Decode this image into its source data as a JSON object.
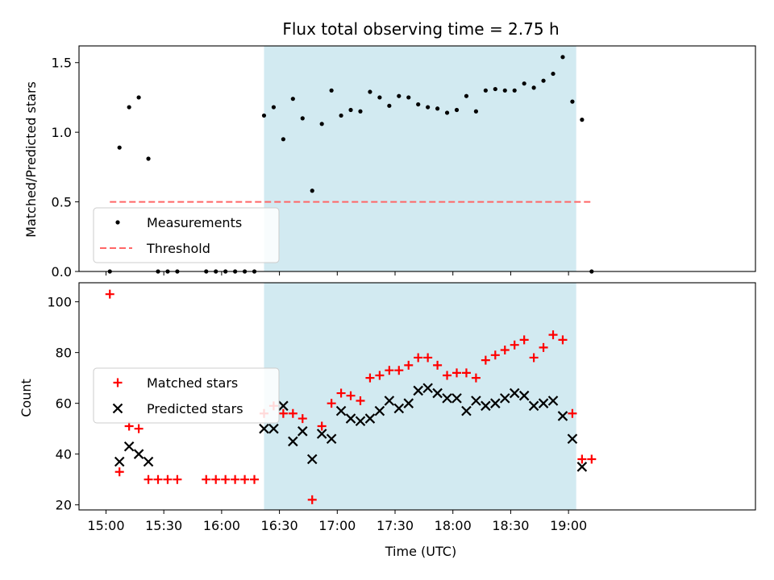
{
  "title": "Flux total observing time = 2.75 h",
  "colors": {
    "band": "#add8e6",
    "measurement": "#000000",
    "threshold": "#ff6666",
    "matched": "#ff0000",
    "predicted": "#000000"
  },
  "chart_data": [
    {
      "type": "scatter",
      "panel": "top",
      "ylabel": "Matched/Predicted stars",
      "xlim_minutes": [
        -14,
        337
      ],
      "ylim": [
        0,
        1.62
      ],
      "yticks": [
        "0.0",
        "0.5",
        "1.0",
        "1.5"
      ],
      "ytick_values": [
        0,
        0.5,
        1.0,
        1.5
      ],
      "observing_window": [
        "16:22",
        "19:04"
      ],
      "legend_position": "lower-left",
      "series": [
        {
          "name": "Measurements",
          "marker": "dot",
          "points": [
            [
              "15:02",
              0.0
            ],
            [
              "15:07",
              0.89
            ],
            [
              "15:12",
              1.18
            ],
            [
              "15:17",
              1.25
            ],
            [
              "15:22",
              0.81
            ],
            [
              "15:27",
              0.0
            ],
            [
              "15:32",
              0.0
            ],
            [
              "15:37",
              0.0
            ],
            [
              "15:52",
              0.0
            ],
            [
              "15:57",
              0.0
            ],
            [
              "16:02",
              0.0
            ],
            [
              "16:07",
              0.0
            ],
            [
              "16:12",
              0.0
            ],
            [
              "16:17",
              0.0
            ],
            [
              "16:22",
              1.12
            ],
            [
              "16:27",
              1.18
            ],
            [
              "16:32",
              0.95
            ],
            [
              "16:37",
              1.24
            ],
            [
              "16:42",
              1.1
            ],
            [
              "16:47",
              0.58
            ],
            [
              "16:52",
              1.06
            ],
            [
              "16:57",
              1.3
            ],
            [
              "17:02",
              1.12
            ],
            [
              "17:07",
              1.16
            ],
            [
              "17:12",
              1.15
            ],
            [
              "17:17",
              1.29
            ],
            [
              "17:22",
              1.25
            ],
            [
              "17:27",
              1.19
            ],
            [
              "17:32",
              1.26
            ],
            [
              "17:37",
              1.25
            ],
            [
              "17:42",
              1.2
            ],
            [
              "17:47",
              1.18
            ],
            [
              "17:52",
              1.17
            ],
            [
              "17:57",
              1.14
            ],
            [
              "18:02",
              1.16
            ],
            [
              "18:07",
              1.26
            ],
            [
              "18:12",
              1.15
            ],
            [
              "18:17",
              1.3
            ],
            [
              "18:22",
              1.31
            ],
            [
              "18:27",
              1.3
            ],
            [
              "18:32",
              1.3
            ],
            [
              "18:37",
              1.35
            ],
            [
              "18:42",
              1.32
            ],
            [
              "18:47",
              1.37
            ],
            [
              "18:52",
              1.42
            ],
            [
              "18:57",
              1.54
            ],
            [
              "19:02",
              1.22
            ],
            [
              "19:07",
              1.09
            ],
            [
              "19:12",
              0.0
            ]
          ]
        },
        {
          "name": "Threshold",
          "marker": "dashed-line",
          "points": [
            [
              "15:02",
              0.5
            ],
            [
              "19:12",
              0.5
            ]
          ]
        }
      ]
    },
    {
      "type": "scatter",
      "panel": "bottom",
      "xlabel": "Time (UTC)",
      "ylabel": "Count",
      "xlim_minutes": [
        -14,
        337
      ],
      "ylim": [
        18,
        107.5
      ],
      "yticks": [
        "20",
        "40",
        "60",
        "80",
        "100"
      ],
      "ytick_values": [
        20,
        40,
        60,
        80,
        100
      ],
      "xticks": [
        "15:00",
        "15:30",
        "16:00",
        "16:30",
        "17:00",
        "17:30",
        "18:00",
        "18:30",
        "19:00"
      ],
      "observing_window": [
        "16:22",
        "19:04"
      ],
      "legend_position": "center-left",
      "series": [
        {
          "name": "Matched stars",
          "marker": "plus",
          "points": [
            [
              "15:02",
              103
            ],
            [
              "15:07",
              33
            ],
            [
              "15:12",
              51
            ],
            [
              "15:17",
              50
            ],
            [
              "15:22",
              30
            ],
            [
              "15:27",
              30
            ],
            [
              "15:32",
              30
            ],
            [
              "15:37",
              30
            ],
            [
              "15:52",
              30
            ],
            [
              "15:57",
              30
            ],
            [
              "16:02",
              30
            ],
            [
              "16:07",
              30
            ],
            [
              "16:12",
              30
            ],
            [
              "16:17",
              30
            ],
            [
              "16:22",
              56
            ],
            [
              "16:27",
              59
            ],
            [
              "16:32",
              56
            ],
            [
              "16:37",
              56
            ],
            [
              "16:42",
              54
            ],
            [
              "16:47",
              22
            ],
            [
              "16:52",
              51
            ],
            [
              "16:57",
              60
            ],
            [
              "17:02",
              64
            ],
            [
              "17:07",
              63
            ],
            [
              "17:12",
              61
            ],
            [
              "17:17",
              70
            ],
            [
              "17:22",
              71
            ],
            [
              "17:27",
              73
            ],
            [
              "17:32",
              73
            ],
            [
              "17:37",
              75
            ],
            [
              "17:42",
              78
            ],
            [
              "17:47",
              78
            ],
            [
              "17:52",
              75
            ],
            [
              "17:57",
              71
            ],
            [
              "18:02",
              72
            ],
            [
              "18:07",
              72
            ],
            [
              "18:12",
              70
            ],
            [
              "18:17",
              77
            ],
            [
              "18:22",
              79
            ],
            [
              "18:27",
              81
            ],
            [
              "18:32",
              83
            ],
            [
              "18:37",
              85
            ],
            [
              "18:42",
              78
            ],
            [
              "18:47",
              82
            ],
            [
              "18:52",
              87
            ],
            [
              "18:57",
              85
            ],
            [
              "19:02",
              56
            ],
            [
              "19:07",
              38
            ],
            [
              "19:12",
              38
            ]
          ]
        },
        {
          "name": "Predicted stars",
          "marker": "x",
          "points": [
            [
              "15:07",
              37
            ],
            [
              "15:12",
              43
            ],
            [
              "15:17",
              40
            ],
            [
              "15:22",
              37
            ],
            [
              "16:22",
              50
            ],
            [
              "16:27",
              50
            ],
            [
              "16:32",
              59
            ],
            [
              "16:37",
              45
            ],
            [
              "16:42",
              49
            ],
            [
              "16:47",
              38
            ],
            [
              "16:52",
              48
            ],
            [
              "16:57",
              46
            ],
            [
              "17:02",
              57
            ],
            [
              "17:07",
              54
            ],
            [
              "17:12",
              53
            ],
            [
              "17:17",
              54
            ],
            [
              "17:22",
              57
            ],
            [
              "17:27",
              61
            ],
            [
              "17:32",
              58
            ],
            [
              "17:37",
              60
            ],
            [
              "17:42",
              65
            ],
            [
              "17:47",
              66
            ],
            [
              "17:52",
              64
            ],
            [
              "17:57",
              62
            ],
            [
              "18:02",
              62
            ],
            [
              "18:07",
              57
            ],
            [
              "18:12",
              61
            ],
            [
              "18:17",
              59
            ],
            [
              "18:22",
              60
            ],
            [
              "18:27",
              62
            ],
            [
              "18:32",
              64
            ],
            [
              "18:37",
              63
            ],
            [
              "18:42",
              59
            ],
            [
              "18:47",
              60
            ],
            [
              "18:52",
              61
            ],
            [
              "18:57",
              55
            ],
            [
              "19:02",
              46
            ],
            [
              "19:07",
              35
            ]
          ]
        }
      ]
    }
  ]
}
